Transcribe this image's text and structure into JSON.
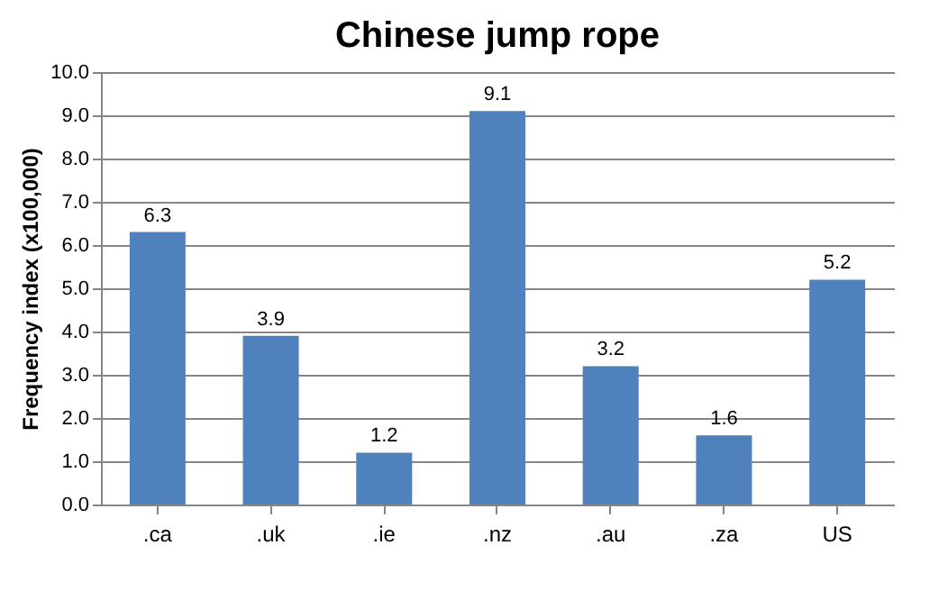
{
  "chart_data": {
    "type": "bar",
    "title": "Chinese jump rope",
    "ylabel": "Frequency index (x100,000)",
    "categories": [
      ".ca",
      ".uk",
      ".ie",
      ".nz",
      ".au",
      ".za",
      "US"
    ],
    "values": [
      6.3,
      3.9,
      1.2,
      9.1,
      3.2,
      1.6,
      5.2
    ],
    "color": "#4f81bd",
    "ylim": [
      0,
      10
    ],
    "yticks": [
      {
        "value": 0,
        "label": "0.0"
      },
      {
        "value": 1,
        "label": "1.0"
      },
      {
        "value": 2,
        "label": "2.0"
      },
      {
        "value": 3,
        "label": "3.0"
      },
      {
        "value": 4,
        "label": "4.0"
      },
      {
        "value": 5,
        "label": "5.0"
      },
      {
        "value": 6,
        "label": "6.0"
      },
      {
        "value": 7,
        "label": "7.0"
      },
      {
        "value": 8,
        "label": "8.0"
      },
      {
        "value": 9,
        "label": "9.0"
      },
      {
        "value": 10,
        "label": "10.0"
      }
    ],
    "grid": "y",
    "data_labels": true
  }
}
